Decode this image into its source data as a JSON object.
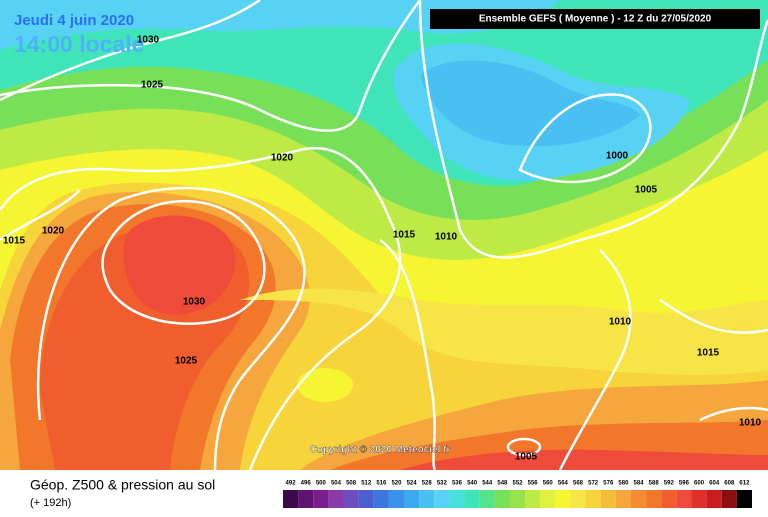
{
  "header": {
    "date": "Jeudi 4 juin 2020",
    "time": "14:00 locale",
    "run": "Ensemble GEFS  ( Moyenne )  -  12 Z du 27/05/2020"
  },
  "isobar_labels": [
    1030,
    1025,
    1020,
    1020,
    1015,
    1030,
    1025,
    1015,
    1010,
    1000,
    1005,
    1010,
    1015,
    1010,
    1005
  ],
  "copyright": "Copyright © 2020 Meteociel.fr",
  "footer": {
    "title": "Géop. Z500 & pression au sol",
    "lead": "(+ 192h)"
  },
  "legend": {
    "values": [
      492,
      496,
      500,
      504,
      508,
      512,
      516,
      520,
      524,
      528,
      532,
      536,
      540,
      544,
      548,
      552,
      556,
      560,
      564,
      568,
      572,
      576,
      580,
      584,
      588,
      592,
      596,
      600,
      604,
      608,
      612
    ],
    "colors": [
      "#3c0a4a",
      "#5e1470",
      "#7a1e8e",
      "#8a3aa8",
      "#6c4ec0",
      "#4b5fd0",
      "#3a78e0",
      "#3a92ea",
      "#3aa9ee",
      "#49bff2",
      "#58d2f4",
      "#48e0dc",
      "#3fe4b8",
      "#55e48a",
      "#78e058",
      "#98e24a",
      "#bdea44",
      "#e0f03c",
      "#f5f532",
      "#f7e548",
      "#f6d43a",
      "#f6bd38",
      "#f5a63c",
      "#f38c33",
      "#f2772a",
      "#ef5e2c",
      "#ef4b3a",
      "#e0302c",
      "#c81e20",
      "#8a1010",
      "#000000"
    ]
  }
}
